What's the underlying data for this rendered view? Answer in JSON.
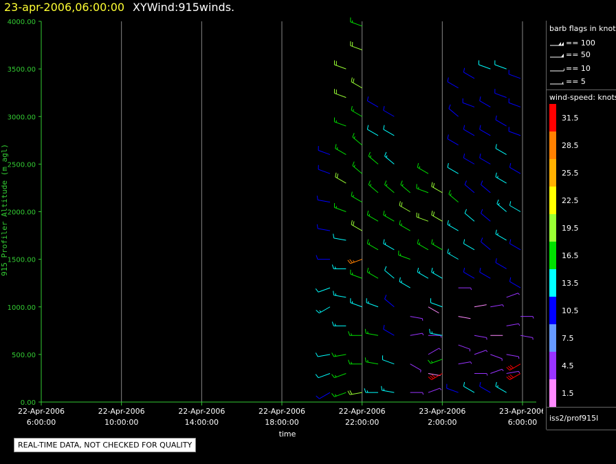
{
  "header": {
    "date": "23-apr-2006,06:00:00",
    "title": "XYWind:915winds."
  },
  "colors": {
    "axis": "#33cc33",
    "grid": "#888888",
    "header_date": "#ffff33"
  },
  "chart_data": {
    "type": "wind-barb",
    "title": "",
    "xlabel": "time",
    "ylabel": "915 Profiler Altitude (m agl)",
    "y_ticks": [
      "0.00",
      "500.00",
      "1000.00",
      "1500.00",
      "2000.00",
      "2500.00",
      "3000.00",
      "3500.00",
      "4000.00"
    ],
    "ylim": [
      0,
      4000
    ],
    "x_ticks": [
      {
        "hours": 0,
        "date": "22-Apr-2006",
        "time": "6:00:00"
      },
      {
        "hours": 4,
        "date": "22-Apr-2006",
        "time": "10:00:00"
      },
      {
        "hours": 8,
        "date": "22-Apr-2006",
        "time": "14:00:00"
      },
      {
        "hours": 12,
        "date": "22-Apr-2006",
        "time": "18:00:00"
      },
      {
        "hours": 16,
        "date": "22-Apr-2006",
        "time": "22:00:00"
      },
      {
        "hours": 20,
        "date": "23-Apr-2006",
        "time": "2:00:00"
      },
      {
        "hours": 24,
        "date": "23-Apr-2006",
        "time": "6:00:00"
      }
    ],
    "grid": true,
    "barb_legend": {
      "title": "barb flags in knots",
      "items": [
        {
          "label": "== 100"
        },
        {
          "label": "== 50"
        },
        {
          "label": "== 10"
        },
        {
          "label": "== 5"
        }
      ]
    },
    "speed_legend": {
      "title": "wind-speed: knots",
      "bins": [
        {
          "label": "31.5",
          "color": "#ff0000"
        },
        {
          "label": "28.5",
          "color": "#ff8000"
        },
        {
          "label": "25.5",
          "color": "#ffb000"
        },
        {
          "label": "22.5",
          "color": "#ffff00"
        },
        {
          "label": "19.5",
          "color": "#99ff33"
        },
        {
          "label": "16.5",
          "color": "#00e000"
        },
        {
          "label": "13.5",
          "color": "#00ffff"
        },
        {
          "label": "10.5",
          "color": "#0000ff"
        },
        {
          "label": "7.5",
          "color": "#6699ff"
        },
        {
          "label": "4.5",
          "color": "#9933ff"
        },
        {
          "label": "1.5",
          "color": "#ff88ff"
        }
      ]
    },
    "series": [
      {
        "hours": 14.4,
        "heights": [
          100,
          300,
          500,
          1000,
          1200,
          1500,
          1800,
          2100,
          2400,
          2600
        ],
        "speeds": [
          11,
          12,
          12,
          14,
          12,
          11,
          11,
          11,
          11,
          11
        ],
        "directions": [
          240,
          250,
          260,
          240,
          250,
          270,
          280,
          280,
          290,
          290
        ]
      },
      {
        "hours": 15.2,
        "heights": [
          100,
          300,
          500,
          800,
          1100,
          1400,
          1700,
          2000,
          2300,
          2600,
          2900,
          3200,
          3500
        ],
        "speeds": [
          17,
          16,
          15,
          14,
          13,
          14,
          12,
          16,
          18,
          17,
          16,
          18,
          19
        ],
        "directions": [
          250,
          250,
          260,
          270,
          280,
          270,
          280,
          290,
          300,
          300,
          290,
          290,
          290
        ]
      },
      {
        "hours": 16.0,
        "heights": [
          100,
          400,
          700,
          1000,
          1300,
          1500,
          1800,
          2100,
          2400,
          2700,
          3000,
          3300,
          3700,
          3950
        ],
        "speeds": [
          18,
          16,
          17,
          14,
          17,
          27,
          18,
          17,
          17,
          16,
          17,
          18,
          19,
          17
        ],
        "directions": [
          260,
          270,
          270,
          290,
          290,
          250,
          300,
          300,
          310,
          310,
          300,
          300,
          290,
          290
        ]
      },
      {
        "hours": 16.8,
        "heights": [
          100,
          400,
          700,
          1000,
          1300,
          1600,
          1900,
          2200,
          2500,
          2800,
          3100
        ],
        "speeds": [
          14,
          17,
          16,
          14,
          15,
          17,
          17,
          16,
          15,
          12,
          11
        ],
        "directions": [
          270,
          280,
          280,
          290,
          300,
          300,
          300,
          310,
          310,
          300,
          300
        ]
      },
      {
        "hours": 17.6,
        "heights": [
          100,
          400,
          700,
          1000,
          1300,
          1600,
          1900,
          2200,
          2500,
          2800,
          3000
        ],
        "speeds": [
          13,
          12,
          11,
          9,
          12,
          14,
          15,
          16,
          14,
          12,
          11
        ],
        "directions": [
          280,
          290,
          300,
          310,
          310,
          300,
          300,
          310,
          310,
          300,
          300
        ]
      },
      {
        "hours": 18.4,
        "heights": [
          100,
          400,
          700,
          900,
          1200,
          1500,
          1800,
          2000,
          2200
        ],
        "speeds": [
          4,
          3,
          5,
          4,
          13,
          15,
          17,
          18,
          17
        ],
        "directions": [
          90,
          120,
          80,
          100,
          300,
          290,
          300,
          300,
          310
        ]
      },
      {
        "hours": 19.3,
        "heights": [
          100,
          300,
          500,
          700,
          1000,
          1300,
          1600,
          1900,
          2200,
          2400
        ],
        "speeds": [
          4,
          2,
          3,
          4,
          2,
          13,
          16,
          18,
          17,
          16
        ],
        "directions": [
          70,
          100,
          60,
          90,
          120,
          300,
          300,
          290,
          290,
          300
        ]
      },
      {
        "hours": 20.0,
        "heights": [
          300,
          450,
          700,
          1000,
          1300,
          1600,
          1900,
          2200
        ],
        "speeds": [
          30,
          17,
          13,
          12,
          14,
          17,
          18,
          18
        ],
        "directions": [
          240,
          250,
          280,
          290,
          300,
          300,
          300,
          300
        ]
      },
      {
        "hours": 20.8,
        "heights": [
          100,
          400,
          600,
          900,
          1200,
          1500,
          1800,
          2100,
          2400,
          2700,
          3000,
          3300
        ],
        "speeds": [
          10,
          4,
          3,
          2,
          4,
          13,
          14,
          16,
          12,
          11,
          10,
          11
        ],
        "directions": [
          290,
          80,
          110,
          100,
          90,
          300,
          300,
          310,
          300,
          300,
          310,
          300
        ]
      },
      {
        "hours": 21.6,
        "heights": [
          100,
          300,
          500,
          700,
          1000,
          1300,
          1600,
          1900,
          2200,
          2500,
          2800,
          3100,
          3400
        ],
        "speeds": [
          12,
          4,
          5,
          3,
          2,
          11,
          12,
          12,
          11,
          10,
          10,
          11,
          11
        ],
        "directions": [
          300,
          90,
          70,
          100,
          80,
          300,
          300,
          310,
          310,
          300,
          300,
          290,
          300
        ]
      },
      {
        "hours": 22.4,
        "heights": [
          100,
          300,
          500,
          700,
          1000,
          1300,
          1600,
          1900,
          2200,
          2500,
          2800,
          3100,
          3500
        ],
        "speeds": [
          11,
          4,
          5,
          2,
          3,
          11,
          11,
          11,
          11,
          11,
          11,
          11,
          12
        ],
        "directions": [
          300,
          70,
          110,
          90,
          80,
          300,
          310,
          310,
          310,
          300,
          300,
          300,
          290
        ]
      },
      {
        "hours": 23.2,
        "heights": [
          100,
          300,
          500,
          800,
          1100,
          1400,
          1700,
          2000,
          2300,
          2600,
          2900,
          3200,
          3500
        ],
        "speeds": [
          13,
          5,
          4,
          3,
          4,
          11,
          13,
          14,
          13,
          12,
          11,
          11,
          12
        ],
        "directions": [
          300,
          80,
          100,
          80,
          70,
          300,
          300,
          310,
          300,
          300,
          300,
          290,
          290
        ]
      },
      {
        "hours": 23.9,
        "heights": [
          300,
          400,
          700,
          900,
          1200,
          1600,
          2000,
          2400,
          2800,
          3100,
          3400
        ],
        "speeds": [
          31,
          30,
          4,
          4,
          11,
          11,
          12,
          11,
          11,
          11,
          11
        ],
        "directions": [
          240,
          240,
          100,
          90,
          300,
          300,
          300,
          300,
          290,
          290,
          290
        ]
      }
    ]
  },
  "source": {
    "label": "iss2/prof915l"
  },
  "notice": {
    "text": "REAL-TIME DATA, NOT CHECKED FOR QUALITY"
  }
}
